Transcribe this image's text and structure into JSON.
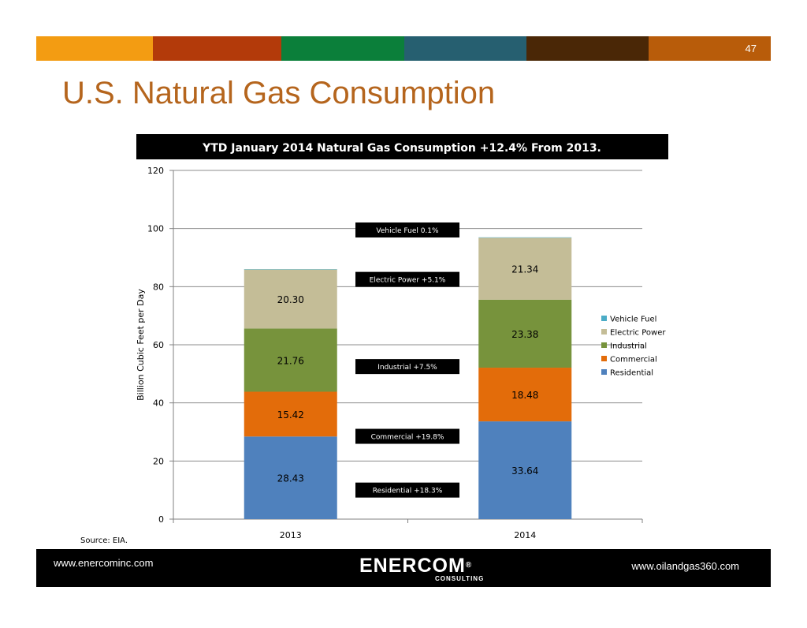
{
  "slide": {
    "page_number": "47",
    "title": "U.S. Natural Gas Consumption",
    "source": "Source: EIA.",
    "bar_colors": [
      "#f39c12",
      "#b33a0a",
      "#0b7f3a",
      "#265f70",
      "#4a2706",
      "#b85c0a"
    ]
  },
  "footer": {
    "left_link": "www.enercominc.com",
    "right_link": "www.oilandgas360.com",
    "logo_text": "ENERCOM",
    "logo_registered": "®",
    "logo_subtext": "CONSULTING"
  },
  "chart_data": {
    "type": "bar",
    "stacked": true,
    "title": "YTD January 2014 Natural Gas Consumption +12.4% From 2013.",
    "xlabel": "",
    "ylabel": "Billion Cubic Feet per Day",
    "ylim": [
      0,
      120
    ],
    "yticks": [
      0,
      20,
      40,
      60,
      80,
      100,
      120
    ],
    "grid": true,
    "categories": [
      "2013",
      "2014"
    ],
    "series": [
      {
        "name": "Residential",
        "values": [
          28.43,
          33.64
        ],
        "color": "#4f81bd",
        "labels": [
          "28.43",
          "33.64"
        ]
      },
      {
        "name": "Commercial",
        "values": [
          15.42,
          18.48
        ],
        "color": "#e36c0a",
        "labels": [
          "15.42",
          "18.48"
        ]
      },
      {
        "name": "Industrial",
        "values": [
          21.76,
          23.38
        ],
        "color": "#77933c",
        "labels": [
          "21.76",
          "23.38"
        ]
      },
      {
        "name": "Electric Power",
        "values": [
          20.3,
          21.34
        ],
        "color": "#c4bd97",
        "labels": [
          "20.30",
          "21.34"
        ]
      },
      {
        "name": "Vehicle Fuel",
        "values": [
          0.12,
          0.13
        ],
        "color": "#4bacc6",
        "labels": [
          "",
          ""
        ]
      }
    ],
    "legend_order": [
      "Vehicle Fuel",
      "Electric Power",
      "Industrial",
      "Commercial",
      "Residential"
    ],
    "legend_position": "right",
    "annotations": [
      {
        "text": "Vehicle Fuel 0.1%",
        "y": 99.5
      },
      {
        "text": "Electric Power +5.1%",
        "y": 82.5
      },
      {
        "text": "Industrial  +7.5%",
        "y": 52.5
      },
      {
        "text": "Commercial +19.8%",
        "y": 28.5
      },
      {
        "text": "Residential  +18.3%",
        "y": 10
      }
    ]
  }
}
